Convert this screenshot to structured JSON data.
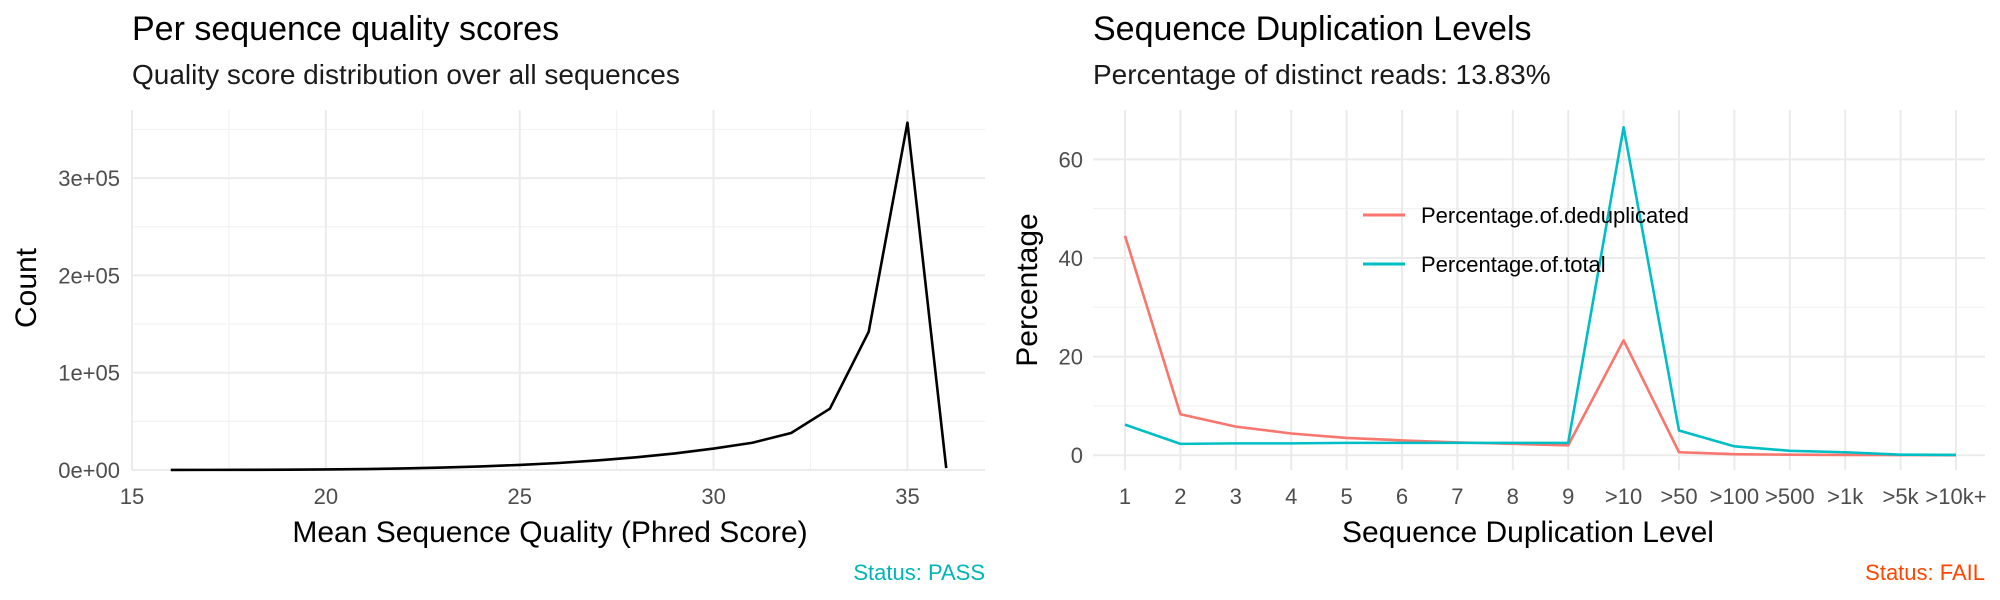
{
  "chart_data": [
    {
      "type": "line",
      "title": "Per sequence quality scores",
      "subtitle": "Quality score distribution over all sequences",
      "xlabel": "Mean Sequence Quality (Phred Score)",
      "ylabel": "Count",
      "xlim": [
        15,
        37
      ],
      "ylim": [
        0,
        370000
      ],
      "x_ticks": [
        15,
        20,
        25,
        30,
        35
      ],
      "y_ticks": [
        0,
        100000,
        200000,
        300000
      ],
      "y_tick_labels": [
        "0e+00",
        "1e+05",
        "2e+05",
        "3e+05"
      ],
      "grid": true,
      "legend": "none",
      "series": [
        {
          "color": "#000000",
          "x": [
            16,
            17,
            18,
            19,
            20,
            21,
            22,
            23,
            24,
            25,
            26,
            27,
            28,
            29,
            30,
            31,
            32,
            33,
            34,
            35,
            36
          ],
          "y": [
            80,
            120,
            200,
            350,
            600,
            1000,
            1600,
            2500,
            3700,
            5200,
            7200,
            9800,
            13000,
            17000,
            22000,
            28000,
            38000,
            63000,
            142000,
            357000,
            2000
          ]
        }
      ],
      "status": "Status: PASS",
      "status_color": "#00b5b8"
    },
    {
      "type": "line",
      "title": "Sequence Duplication Levels",
      "subtitle": "Percentage of distinct reads: 13.83%",
      "xlabel": "Sequence Duplication Level",
      "ylabel": "Percentage",
      "categories": [
        "1",
        "2",
        "3",
        "4",
        "5",
        "6",
        "7",
        "8",
        "9",
        ">10",
        ">50",
        ">100",
        ">500",
        ">1k",
        ">5k",
        ">10k+"
      ],
      "ylim": [
        -3,
        70
      ],
      "y_ticks": [
        0,
        20,
        40,
        60
      ],
      "grid": true,
      "legend": "inside-top-center",
      "series": [
        {
          "name": "Percentage.of.deduplicated",
          "color": "#f8766d",
          "values": [
            44.5,
            8.3,
            5.8,
            4.4,
            3.5,
            3.0,
            2.6,
            2.3,
            2.0,
            23.3,
            0.6,
            0.2,
            0.1,
            0.05,
            0.02,
            0.01
          ]
        },
        {
          "name": "Percentage.of.total",
          "color": "#00bfc4",
          "values": [
            6.2,
            2.3,
            2.4,
            2.4,
            2.5,
            2.5,
            2.5,
            2.5,
            2.5,
            66.5,
            5.0,
            1.8,
            0.9,
            0.6,
            0.1,
            0.05
          ]
        }
      ],
      "status": "Status: FAIL",
      "status_color": "#ff4500"
    }
  ]
}
